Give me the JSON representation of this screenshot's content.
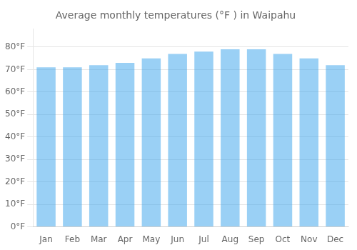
{
  "chart_data": {
    "type": "bar",
    "title": "Average monthly temperatures (°F ) in Waipahu",
    "categories": [
      "Jan",
      "Feb",
      "Mar",
      "Apr",
      "May",
      "Jun",
      "Jul",
      "Aug",
      "Sep",
      "Oct",
      "Nov",
      "Dec"
    ],
    "values": [
      71,
      71,
      72,
      73,
      75,
      77,
      78,
      79,
      79,
      77,
      75,
      72
    ],
    "ylim": [
      0,
      88
    ],
    "yticks": [
      {
        "value": 0,
        "label": "0°F"
      },
      {
        "value": 10,
        "label": "10°F"
      },
      {
        "value": 20,
        "label": "20°F"
      },
      {
        "value": 30,
        "label": "30°F"
      },
      {
        "value": 40,
        "label": "40°F"
      },
      {
        "value": 50,
        "label": "50°F"
      },
      {
        "value": 60,
        "label": "60°F"
      },
      {
        "value": 70,
        "label": "70°F"
      },
      {
        "value": 80,
        "label": "80°F"
      }
    ],
    "grid": true
  }
}
